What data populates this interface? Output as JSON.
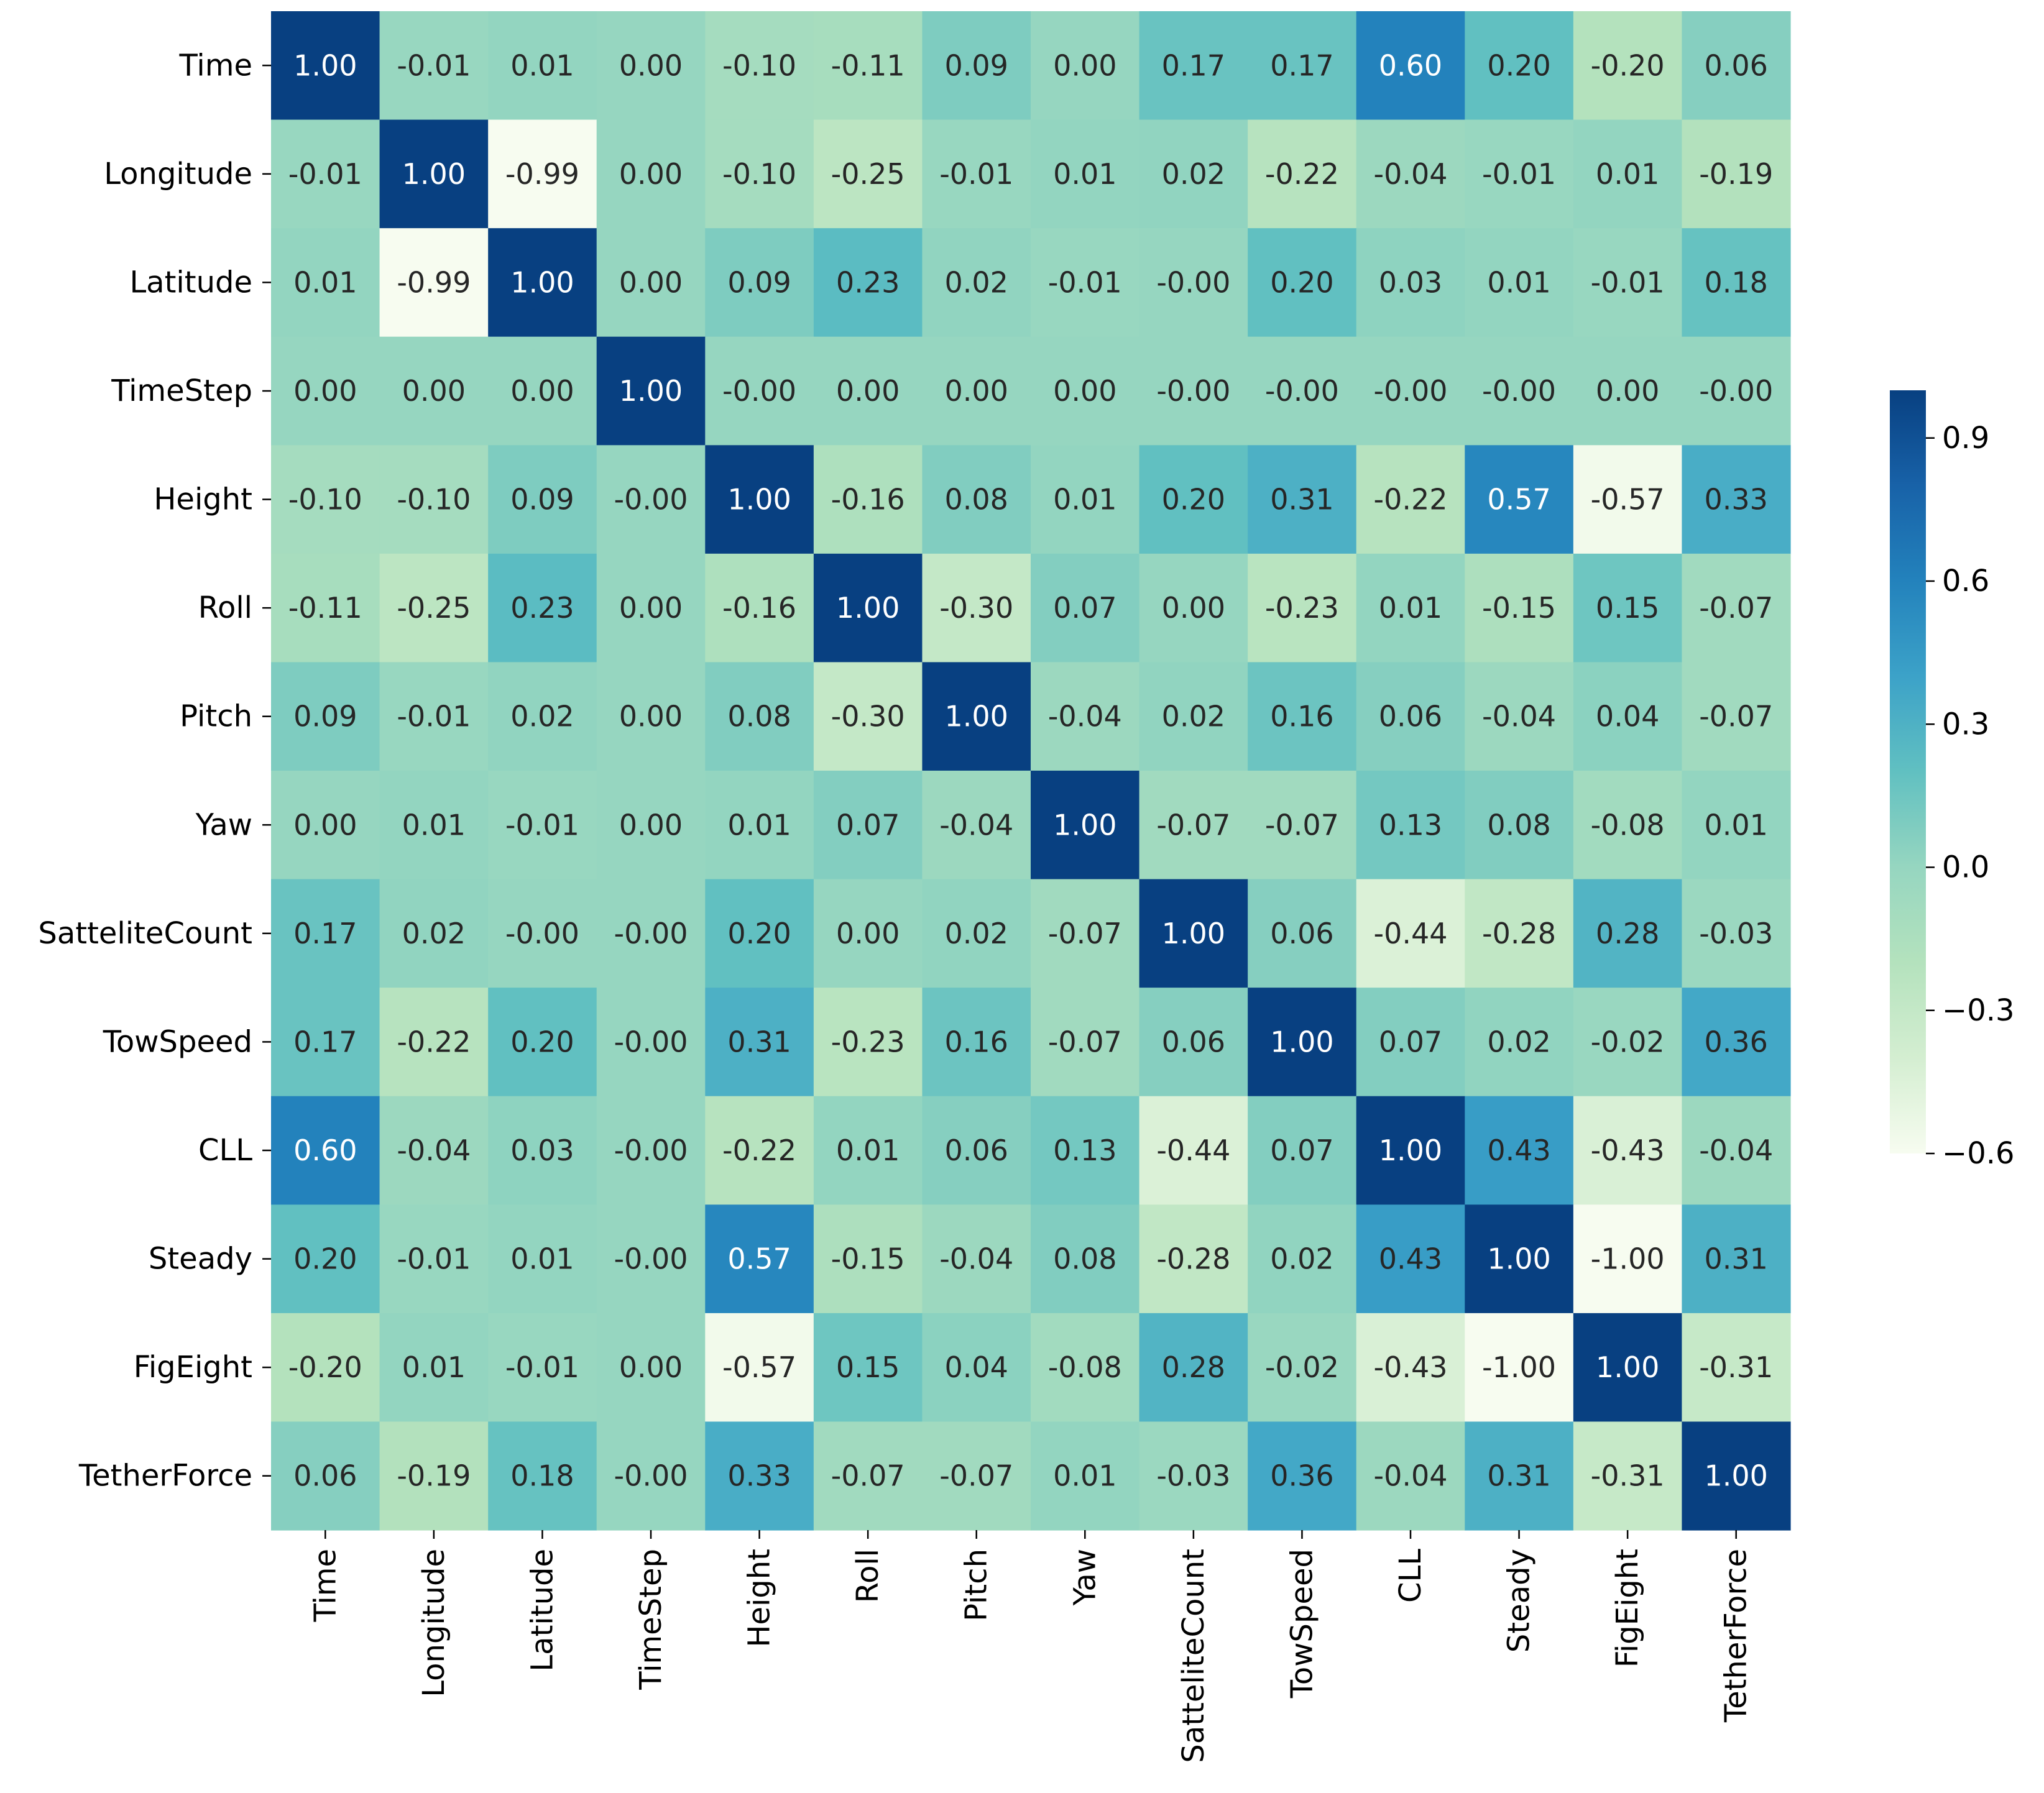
{
  "chart_data": {
    "type": "heatmap",
    "title": "",
    "xlabel": "",
    "ylabel": "",
    "labels": [
      "Time",
      "Longitude",
      "Latitude",
      "TimeStep",
      "Height",
      "Roll",
      "Pitch",
      "Yaw",
      "SatteliteCount",
      "TowSpeed",
      "CLL",
      "Steady",
      "FigEight",
      "TetherForce"
    ],
    "matrix": [
      [
        1.0,
        -0.01,
        0.01,
        0.0,
        -0.1,
        -0.11,
        0.09,
        0.0,
        0.17,
        0.17,
        0.6,
        0.2,
        -0.2,
        0.06
      ],
      [
        -0.01,
        1.0,
        -0.99,
        0.0,
        -0.1,
        -0.25,
        -0.01,
        0.01,
        0.02,
        -0.22,
        -0.04,
        -0.01,
        0.01,
        -0.19
      ],
      [
        0.01,
        -0.99,
        1.0,
        0.0,
        0.09,
        0.23,
        0.02,
        -0.01,
        -0.0,
        0.2,
        0.03,
        0.01,
        -0.01,
        0.18
      ],
      [
        0.0,
        0.0,
        0.0,
        1.0,
        -0.0,
        0.0,
        0.0,
        0.0,
        -0.0,
        -0.0,
        -0.0,
        -0.0,
        0.0,
        -0.0
      ],
      [
        -0.1,
        -0.1,
        0.09,
        -0.0,
        1.0,
        -0.16,
        0.08,
        0.01,
        0.2,
        0.31,
        -0.22,
        0.57,
        -0.57,
        0.33
      ],
      [
        -0.11,
        -0.25,
        0.23,
        0.0,
        -0.16,
        1.0,
        -0.3,
        0.07,
        0.0,
        -0.23,
        0.01,
        -0.15,
        0.15,
        -0.07
      ],
      [
        0.09,
        -0.01,
        0.02,
        0.0,
        0.08,
        -0.3,
        1.0,
        -0.04,
        0.02,
        0.16,
        0.06,
        -0.04,
        0.04,
        -0.07
      ],
      [
        0.0,
        0.01,
        -0.01,
        0.0,
        0.01,
        0.07,
        -0.04,
        1.0,
        -0.07,
        -0.07,
        0.13,
        0.08,
        -0.08,
        0.01
      ],
      [
        0.17,
        0.02,
        -0.0,
        -0.0,
        0.2,
        0.0,
        0.02,
        -0.07,
        1.0,
        0.06,
        -0.44,
        -0.28,
        0.28,
        -0.03
      ],
      [
        0.17,
        -0.22,
        0.2,
        -0.0,
        0.31,
        -0.23,
        0.16,
        -0.07,
        0.06,
        1.0,
        0.07,
        0.02,
        -0.02,
        0.36
      ],
      [
        0.6,
        -0.04,
        0.03,
        -0.0,
        -0.22,
        0.01,
        0.06,
        0.13,
        -0.44,
        0.07,
        1.0,
        0.43,
        -0.43,
        -0.04
      ],
      [
        0.2,
        -0.01,
        0.01,
        -0.0,
        0.57,
        -0.15,
        -0.04,
        0.08,
        -0.28,
        0.02,
        0.43,
        1.0,
        -1.0,
        0.31
      ],
      [
        -0.2,
        0.01,
        -0.01,
        0.0,
        -0.57,
        0.15,
        0.04,
        -0.08,
        0.28,
        -0.02,
        -0.43,
        -1.0,
        1.0,
        -0.31
      ],
      [
        0.06,
        -0.19,
        0.18,
        -0.0,
        0.33,
        -0.07,
        -0.07,
        0.01,
        -0.03,
        0.36,
        -0.04,
        0.31,
        -0.31,
        1.0
      ]
    ],
    "annotation_format": "0.00",
    "colormap": "YlGnBu",
    "colorbar": {
      "range": [
        -0.6,
        1.0
      ],
      "ticks": [
        0.9,
        0.6,
        0.3,
        0.0,
        -0.3,
        -0.6
      ],
      "tick_labels": [
        "0.9",
        "0.6",
        "0.3",
        "0.0",
        "−0.3",
        "−0.6"
      ]
    },
    "grid": false,
    "legend": "colorbar-right"
  },
  "colors": {
    "ramp": [
      "#f7fcf0",
      "#d4eed1",
      "#b4e2bd",
      "#96d6c0",
      "#61c0c1",
      "#3ca2c8",
      "#2382bc",
      "#1862a8",
      "#084081"
    ],
    "text_dark": "#262626",
    "text_light": "#ffffff",
    "axis": "#000000"
  }
}
